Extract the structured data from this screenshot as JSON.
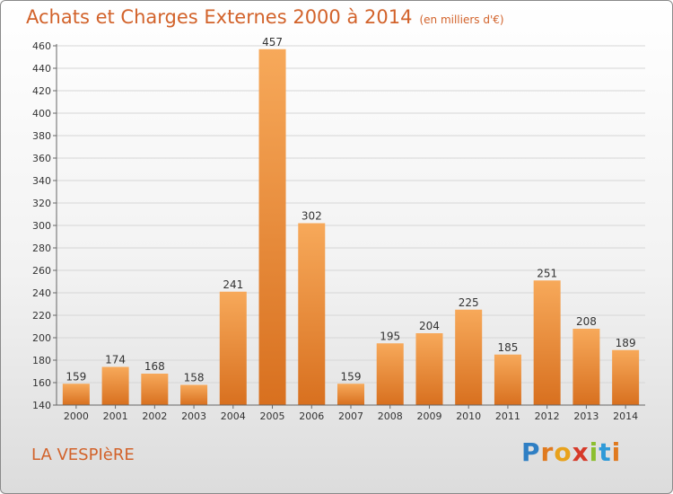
{
  "header": {
    "title": "Achats et Charges Externes 2000 à 2014",
    "subtitle": "(en milliers d'€)"
  },
  "footer": {
    "commune": "LA VESPIèRE",
    "logo_letters": [
      {
        "ch": "P",
        "color": "#2f7fc4"
      },
      {
        "ch": "r",
        "color": "#e07a1f"
      },
      {
        "ch": "o",
        "color": "#e8a21c"
      },
      {
        "ch": "x",
        "color": "#d63a2a"
      },
      {
        "ch": "i",
        "color": "#8cbf2f"
      },
      {
        "ch": "t",
        "color": "#2f9ad8"
      },
      {
        "ch": "i",
        "color": "#e07a1f"
      }
    ]
  },
  "chart_data": {
    "type": "bar",
    "categories": [
      "2000",
      "2001",
      "2002",
      "2003",
      "2004",
      "2005",
      "2006",
      "2007",
      "2008",
      "2009",
      "2010",
      "2011",
      "2012",
      "2013",
      "2014"
    ],
    "values": [
      159,
      174,
      168,
      158,
      241,
      457,
      302,
      159,
      195,
      204,
      225,
      185,
      251,
      208,
      189
    ],
    "ylim": [
      140,
      460
    ],
    "yticks": [
      140,
      160,
      180,
      200,
      220,
      240,
      260,
      280,
      300,
      320,
      340,
      360,
      380,
      400,
      420,
      440,
      460
    ],
    "grid": true,
    "bar_color": "#f0923a",
    "title_color": "#d2622a"
  }
}
